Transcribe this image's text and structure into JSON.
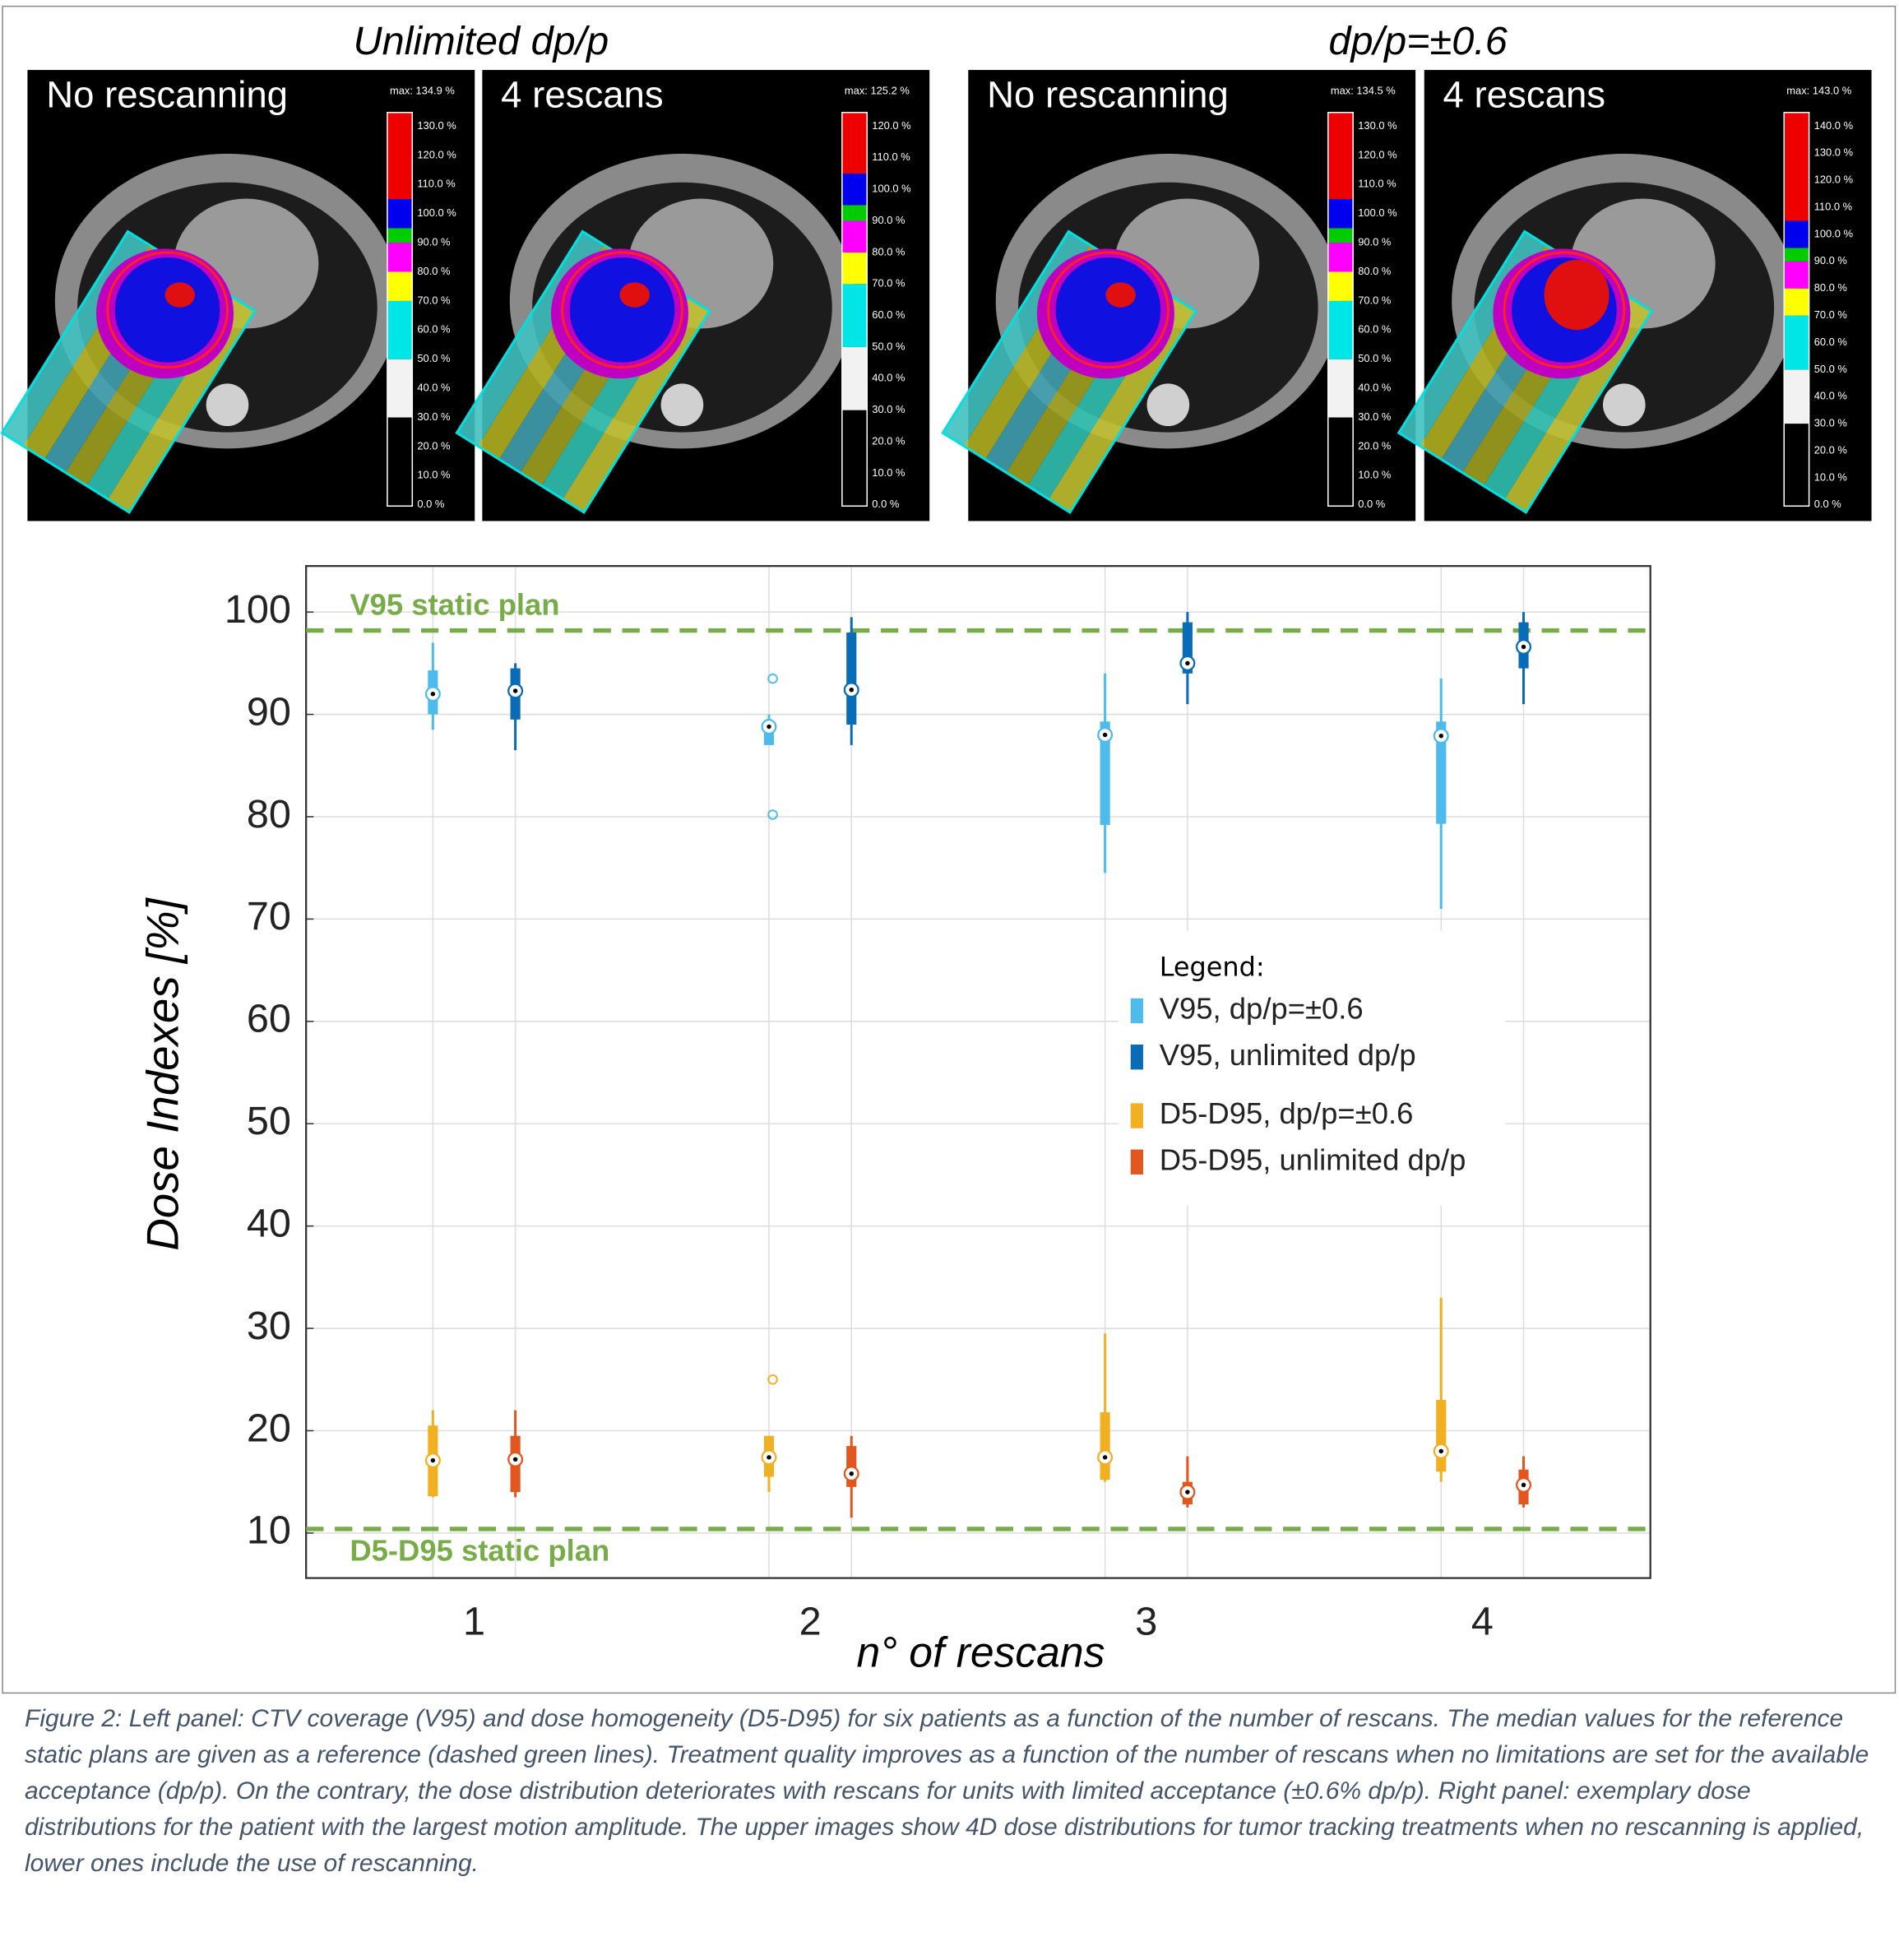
{
  "panel_groups": [
    {
      "title": "Unlimited dp/p"
    },
    {
      "title": "dp/p=±0.6"
    }
  ],
  "panels": [
    {
      "label": "No rescanning",
      "max": "max: 134.9 %",
      "colorbar_ticks": [
        "0.0 %",
        "10.0 %",
        "20.0 %",
        "30.0 %",
        "40.0 %",
        "50.0 %",
        "60.0 %",
        "70.0 %",
        "80.0 %",
        "90.0 %",
        "100.0 %",
        "110.0 %",
        "120.0 %",
        "130.0 %"
      ]
    },
    {
      "label": "4 rescans",
      "max": "max: 125.2 %",
      "colorbar_ticks": [
        "0.0 %",
        "10.0 %",
        "20.0 %",
        "30.0 %",
        "40.0 %",
        "50.0 %",
        "60.0 %",
        "70.0 %",
        "80.0 %",
        "90.0 %",
        "100.0 %",
        "110.0 %",
        "120.0 %"
      ]
    },
    {
      "label": "No rescanning",
      "max": "max: 134.5 %",
      "colorbar_ticks": [
        "0.0 %",
        "10.0 %",
        "20.0 %",
        "30.0 %",
        "40.0 %",
        "50.0 %",
        "60.0 %",
        "70.0 %",
        "80.0 %",
        "90.0 %",
        "100.0 %",
        "110.0 %",
        "120.0 %",
        "130.0 %"
      ]
    },
    {
      "label": "4 rescans",
      "max": "max: 143.0 %",
      "colorbar_ticks": [
        "0.0 %",
        "10.0 %",
        "20.0 %",
        "30.0 %",
        "40.0 %",
        "50.0 %",
        "60.0 %",
        "70.0 %",
        "80.0 %",
        "90.0 %",
        "100.0 %",
        "110.0 %",
        "120.0 %",
        "130.0 %",
        "140.0 %"
      ]
    }
  ],
  "chart_data": {
    "type": "box",
    "ylabel": "Dose Indexes [%]",
    "xlabel": "n° of rescans",
    "categories": [
      "1",
      "2",
      "3",
      "4"
    ],
    "ylim": [
      5.6,
      104.5
    ],
    "yticks": [
      10,
      20,
      30,
      40,
      50,
      60,
      70,
      80,
      90,
      100
    ],
    "grid": true,
    "legend_title": "Legend:",
    "legend_position": "right",
    "reference_lines": [
      {
        "value": 98.2,
        "label": "V95 static plan",
        "color": "#77ac48"
      },
      {
        "value": 10.4,
        "label": "D5-D95 static plan",
        "color": "#77ac48"
      }
    ],
    "series": [
      {
        "name": "V95, dp/p=±0.6",
        "color": "#4dbbeb",
        "boxes": [
          {
            "whislo": 88.5,
            "q1": 90,
            "med": 92,
            "q3": 94.3,
            "whishi": 97,
            "fliers": []
          },
          {
            "whislo": 87,
            "q1": 87,
            "med": 88.8,
            "q3": 89.4,
            "whishi": 90,
            "fliers": [
              93.5,
              80.2
            ]
          },
          {
            "whislo": 74.5,
            "q1": 79.2,
            "med": 88,
            "q3": 89.3,
            "whishi": 94,
            "fliers": []
          },
          {
            "whislo": 71,
            "q1": 79.3,
            "med": 87.9,
            "q3": 89.3,
            "whishi": 93.5,
            "fliers": []
          }
        ]
      },
      {
        "name": "V95, unlimited dp/p",
        "color": "#0a6cb6",
        "boxes": [
          {
            "whislo": 86.5,
            "q1": 89.5,
            "med": 92.3,
            "q3": 94.5,
            "whishi": 95,
            "fliers": []
          },
          {
            "whislo": 87,
            "q1": 89,
            "med": 92.4,
            "q3": 98,
            "whishi": 99.5,
            "fliers": []
          },
          {
            "whislo": 91,
            "q1": 94,
            "med": 95,
            "q3": 99,
            "whishi": 100,
            "fliers": []
          },
          {
            "whislo": 91,
            "q1": 94.5,
            "med": 96.6,
            "q3": 99,
            "whishi": 100,
            "fliers": []
          }
        ]
      },
      {
        "name": "D5-D95, dp/p=±0.6",
        "color": "#f0b022",
        "boxes": [
          {
            "whislo": 13.5,
            "q1": 13.6,
            "med": 17.1,
            "q3": 20.5,
            "whishi": 22,
            "fliers": []
          },
          {
            "whislo": 14,
            "q1": 15.5,
            "med": 17.4,
            "q3": 19.5,
            "whishi": 19.5,
            "fliers": [
              25
            ]
          },
          {
            "whislo": 15,
            "q1": 15.2,
            "med": 17.4,
            "q3": 21.8,
            "whishi": 29.5,
            "fliers": []
          },
          {
            "whislo": 15,
            "q1": 16,
            "med": 18,
            "q3": 23,
            "whishi": 33,
            "fliers": []
          }
        ]
      },
      {
        "name": "D5-D95, unlimited dp/p",
        "color": "#e2561f",
        "boxes": [
          {
            "whislo": 13.5,
            "q1": 14,
            "med": 17.2,
            "q3": 19.5,
            "whishi": 22,
            "fliers": []
          },
          {
            "whislo": 11.5,
            "q1": 14.5,
            "med": 15.8,
            "q3": 18.5,
            "whishi": 19.5,
            "fliers": []
          },
          {
            "whislo": 12.5,
            "q1": 12.8,
            "med": 14,
            "q3": 15,
            "whishi": 17.5,
            "fliers": []
          },
          {
            "whislo": 12.5,
            "q1": 12.8,
            "med": 14.7,
            "q3": 16.2,
            "whishi": 17.5,
            "fliers": []
          }
        ]
      }
    ]
  },
  "caption": "Figure 2: Left panel: CTV coverage (V95) and dose homogeneity (D5-D95) for six patients as a function of the number of rescans. The median values for the reference static plans are given as a reference (dashed green lines). Treatment quality improves as a function of the number of rescans when no limitations are set for the available acceptance (dp/p). On the contrary, the dose distribution deteriorates with rescans for units with limited acceptance (±0.6% dp/p). Right panel: exemplary dose distributions for the patient with the largest motion amplitude. The upper images show 4D dose distributions for tumor tracking treatments when no rescanning is applied, lower ones include the use of rescanning."
}
